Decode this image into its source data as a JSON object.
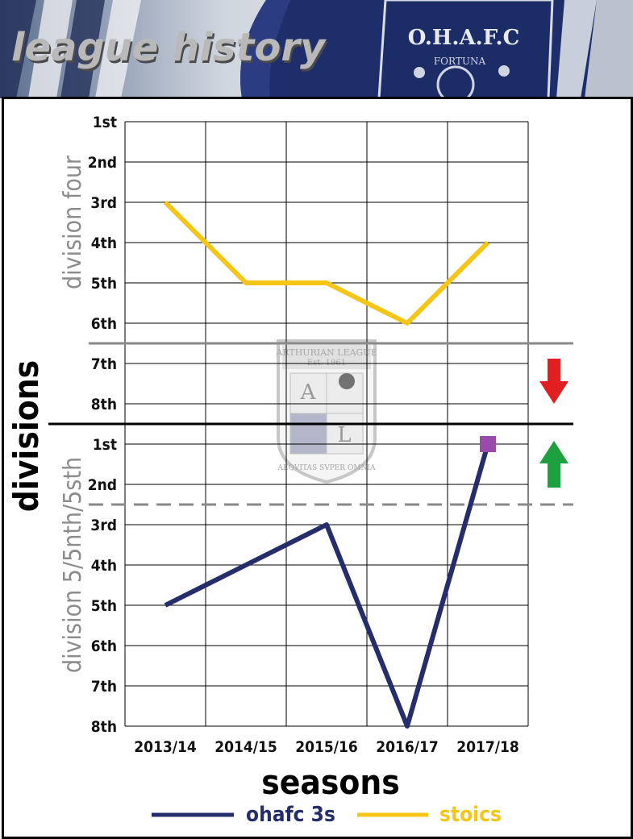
{
  "header": {
    "title": "league history",
    "crest_text": "O.H.A.F.C",
    "crest_motto": "FORTUNA"
  },
  "league_badge": {
    "name": "ARTHURIAN LEAGUE",
    "est": "Est. 1961",
    "letters": [
      "A",
      "L"
    ],
    "motto": "AEQVITAS SVPER OMNIA"
  },
  "colors": {
    "ohafc_3s": "#262d6b",
    "stoics": "#f5c518",
    "marker": "#9a4aa8",
    "down_arrow": "#e02020",
    "up_arrow": "#1fa040"
  },
  "icons": {
    "relegation": "arrow-down-icon",
    "promotion": "arrow-up-icon"
  },
  "chart_data": {
    "type": "line",
    "categories": [
      "2013/14",
      "2014/15",
      "2015/16",
      "2016/17",
      "2017/18"
    ],
    "xlabel": "seasons",
    "ylabel": "divisions",
    "division_labels": [
      "division four",
      "division 5/5nth/5sth"
    ],
    "y_tick_labels": [
      "1st",
      "2nd",
      "3rd",
      "4th",
      "5th",
      "6th",
      "7th",
      "8th",
      "1st",
      "2nd",
      "3rd",
      "4th",
      "5th",
      "6th",
      "7th",
      "8th"
    ],
    "y_levels": 16,
    "series": [
      {
        "name": "ohafc 3s",
        "division": "division 5/5nth/5sth",
        "positions": [
          5,
          4,
          3,
          8,
          1
        ],
        "end_marker": "square"
      },
      {
        "name": "stoics",
        "division": "division four",
        "positions": [
          3,
          5,
          5,
          6,
          4
        ]
      }
    ],
    "relegation_zone_after": "division four 6th",
    "promotion_zone_until": "division 5/5nth/5sth 2nd",
    "grid": true,
    "legend_placement": "bottom"
  }
}
